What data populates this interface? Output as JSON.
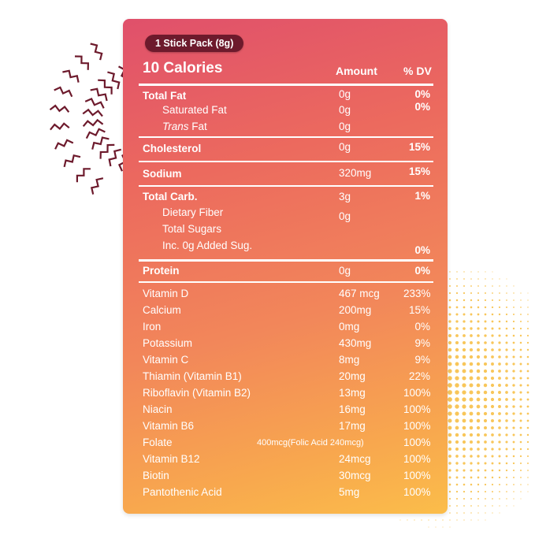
{
  "panel": {
    "serving": "1 Stick Pack (8g)",
    "calories": "10 Calories",
    "header_amount": "Amount",
    "header_dv": "% DV"
  },
  "macros": {
    "total_fat": {
      "label": "Total Fat",
      "amount": "0g",
      "dv": "0%"
    },
    "saturated_fat": {
      "label": "Saturated Fat",
      "amount": "0g",
      "dv": "0%"
    },
    "trans_fat": {
      "label_italic": "Trans",
      "label_rest": " Fat",
      "amount": "0g"
    },
    "cholesterol": {
      "label": "Cholesterol",
      "amount": "0g",
      "dv": "15%"
    },
    "sodium": {
      "label": "Sodium",
      "amount": "320mg",
      "dv": "15%"
    },
    "total_carb": {
      "label": "Total  Carb.",
      "amount": "3g",
      "dv": "1%"
    },
    "dietary_fiber": {
      "label": "Dietary Fiber",
      "amount": "0g"
    },
    "total_sugars": {
      "label": "Total Sugars"
    },
    "added_sugars": {
      "label": "Inc. 0g Added Sug.",
      "dv": "0%"
    },
    "protein": {
      "label": "Protein",
      "amount": "0g",
      "dv": "0%"
    }
  },
  "vitamins": [
    {
      "name": "Vitamin D",
      "amount": "467 mcg",
      "dv": "233%"
    },
    {
      "name": "Calcium",
      "amount": "200mg",
      "dv": "15%"
    },
    {
      "name": "Iron",
      "amount": "0mg",
      "dv": "0%"
    },
    {
      "name": "Potassium",
      "amount": "430mg",
      "dv": "9%"
    },
    {
      "name": "Vitamin C",
      "amount": "8mg",
      "dv": "9%"
    },
    {
      "name": "Thiamin (Vitamin B1)",
      "amount": "20mg",
      "dv": "22%"
    },
    {
      "name": "Riboflavin (Vitamin B2)",
      "amount": "13mg",
      "dv": "100%"
    },
    {
      "name": "Niacin",
      "amount": "16mg",
      "dv": "100%"
    },
    {
      "name": "Vitamin B6",
      "amount": "17mg",
      "dv": "100%"
    },
    {
      "name": "Folate",
      "amount": "400mcg(Folic Acid 240mcg)",
      "dv": "100%"
    },
    {
      "name": "Vitamin B12",
      "amount": "24mcg",
      "dv": "100%"
    },
    {
      "name": "Biotin",
      "amount": "30mcg",
      "dv": "100%"
    },
    {
      "name": "Pantothenic Acid",
      "amount": "5mg",
      "dv": "100%"
    }
  ],
  "colors": {
    "pill": "#6d1a2c",
    "gradient_top": "#e0506b",
    "gradient_bottom": "#fbbd4a",
    "burst": "#6d1a2c",
    "dots": "#f8c65a"
  }
}
